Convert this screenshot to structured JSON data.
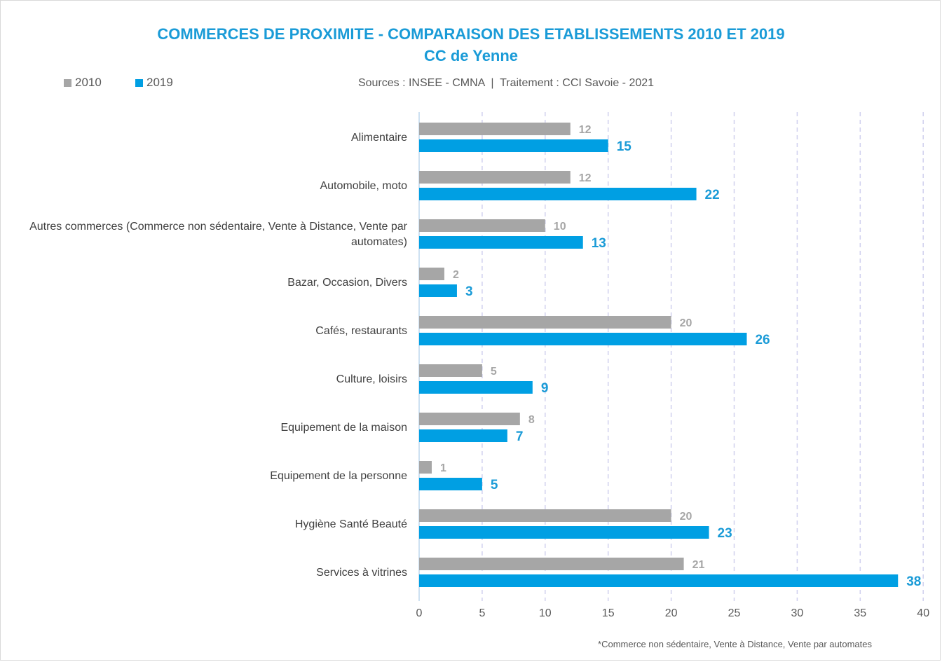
{
  "header": {
    "title": "COMMERCES DE PROXIMITE - COMPARAISON DES ETABLISSEMENTS 2010 ET 2019",
    "subtitle": "CC de Yenne",
    "source": "Sources : INSEE - CMNA  |  Traitement : CCI Savoie - 2021",
    "footnote": "*Commerce non sédentaire, Vente à Distance, Vente par automates"
  },
  "colors": {
    "2010": "#a6a6a6",
    "2019": "#009fe3",
    "grid": "#d0d0ee",
    "axis": "#bdd7ee"
  },
  "chart_data": {
    "type": "bar",
    "orientation": "horizontal",
    "title": "COMMERCES DE PROXIMITE - COMPARAISON DES ETABLISSEMENTS 2010 ET 2019",
    "subtitle": "CC de Yenne",
    "categories": [
      [
        "Alimentaire"
      ],
      [
        "Automobile, moto"
      ],
      [
        "Autres commerces (Commerce non sédentaire, Vente à Distance, Vente par",
        "automates)"
      ],
      [
        "Bazar, Occasion, Divers"
      ],
      [
        "Cafés, restaurants"
      ],
      [
        "Culture, loisirs"
      ],
      [
        "Equipement de la maison"
      ],
      [
        "Equipement de la personne"
      ],
      [
        "Hygiène Santé Beauté"
      ],
      [
        "Services à vitrines"
      ]
    ],
    "series": [
      {
        "name": "2010",
        "values": [
          12,
          12,
          10,
          2,
          20,
          5,
          8,
          1,
          20,
          21
        ]
      },
      {
        "name": "2019",
        "values": [
          15,
          22,
          13,
          3,
          26,
          9,
          7,
          5,
          23,
          38
        ]
      }
    ],
    "xlim": [
      0,
      40
    ],
    "xticks": [
      0,
      5,
      10,
      15,
      20,
      25,
      30,
      35,
      40
    ],
    "grid": "vertical dashed",
    "legend": "top-left"
  }
}
